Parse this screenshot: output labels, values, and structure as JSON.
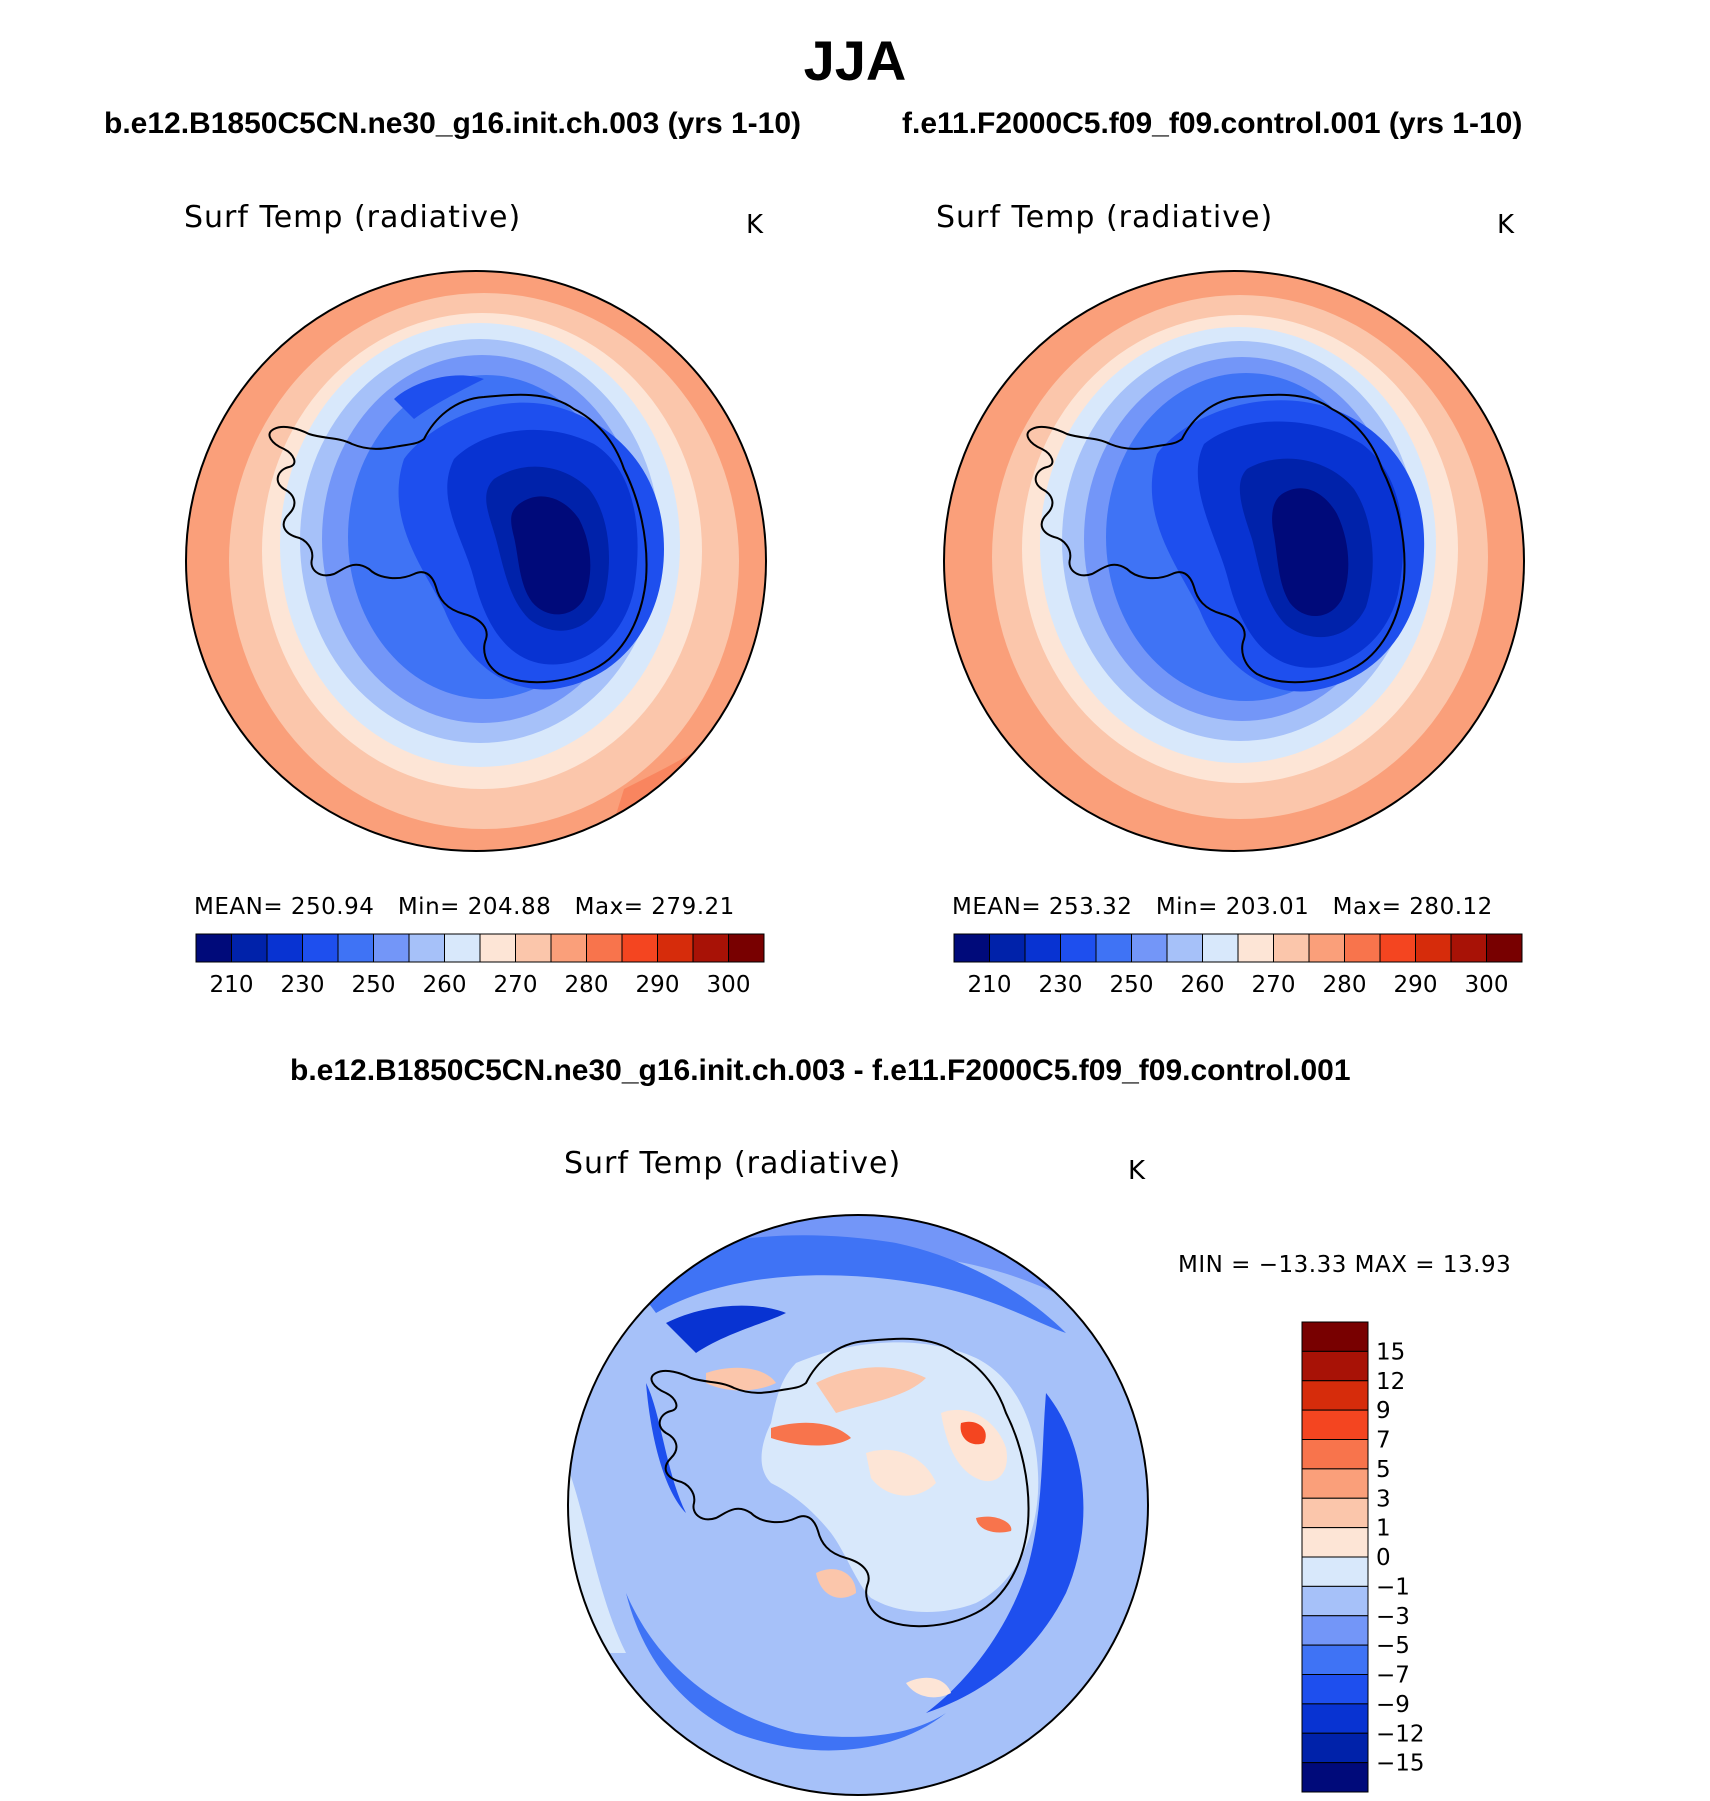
{
  "title": "JJA",
  "panels": {
    "left": {
      "case": "b.e12.B1850C5CN.ne30_g16.init.ch.003 (yrs 1-10)",
      "variable": "Surf Temp (radiative)",
      "units": "K",
      "mean_label": "MEAN=",
      "mean": "250.94",
      "min_label": "Min=",
      "min": "204.88",
      "max_label": "Max=",
      "max": "279.21"
    },
    "right": {
      "case": "f.e11.F2000C5.f09_f09.control.001 (yrs 1-10)",
      "variable": "Surf Temp (radiative)",
      "units": "K",
      "mean_label": "MEAN=",
      "mean": "253.32",
      "min_label": "Min=",
      "min": "203.01",
      "max_label": "Max=",
      "max": "280.12"
    },
    "diff": {
      "case": "b.e12.B1850C5CN.ne30_g16.init.ch.003 - f.e11.F2000C5.f09_f09.control.001",
      "variable": "Surf Temp (radiative)",
      "units": "K",
      "minmax": "MIN = −13.33 MAX =   13.93"
    }
  },
  "chart_data": [
    {
      "type": "heatmap",
      "projection": "south polar stereographic",
      "title": "Surf Temp (radiative)",
      "units": "K",
      "mean": 250.94,
      "min": 204.88,
      "max": 279.21,
      "colorbar_levels": [
        210,
        220,
        230,
        240,
        250,
        255,
        260,
        265,
        270,
        275,
        280,
        285,
        290,
        295,
        300
      ],
      "colorbar_tick_labels": [
        "210",
        "230",
        "250",
        "260",
        "270",
        "280",
        "290",
        "300"
      ],
      "colorbar_colors": [
        "#000a7a",
        "#0022aa",
        "#0833d2",
        "#1e4fee",
        "#3f73f5",
        "#7396f8",
        "#a6c1f9",
        "#d8e8fb",
        "#fde5d6",
        "#fbc6ab",
        "#fa9f7a",
        "#f8744c",
        "#f44520",
        "#d62c0b",
        "#a81206",
        "#780000"
      ]
    },
    {
      "type": "heatmap",
      "projection": "south polar stereographic",
      "title": "Surf Temp (radiative)",
      "units": "K",
      "mean": 253.32,
      "min": 203.01,
      "max": 280.12,
      "colorbar_levels": [
        210,
        220,
        230,
        240,
        250,
        255,
        260,
        265,
        270,
        275,
        280,
        285,
        290,
        295,
        300
      ],
      "colorbar_tick_labels": [
        "210",
        "230",
        "250",
        "260",
        "270",
        "280",
        "290",
        "300"
      ],
      "colorbar_colors": [
        "#000a7a",
        "#0022aa",
        "#0833d2",
        "#1e4fee",
        "#3f73f5",
        "#7396f8",
        "#a6c1f9",
        "#d8e8fb",
        "#fde5d6",
        "#fbc6ab",
        "#fa9f7a",
        "#f8744c",
        "#f44520",
        "#d62c0b",
        "#a81206",
        "#780000"
      ]
    },
    {
      "type": "heatmap",
      "projection": "south polar stereographic",
      "title": "Surf Temp (radiative)",
      "units": "K",
      "min": -13.33,
      "max": 13.93,
      "colorbar_levels": [
        -15,
        -12,
        -9,
        -7,
        -5,
        -3,
        -1,
        0,
        1,
        3,
        5,
        7,
        9,
        12,
        15
      ],
      "colorbar_tick_labels": [
        "−15",
        "−12",
        "−9",
        "−7",
        "−5",
        "−3",
        "−1",
        "0",
        "1",
        "3",
        "5",
        "7",
        "9",
        "12",
        "15"
      ],
      "colorbar_colors": [
        "#000a7a",
        "#0022aa",
        "#0833d2",
        "#1e4fee",
        "#3f73f5",
        "#7396f8",
        "#a6c1f9",
        "#d8e8fb",
        "#fde5d6",
        "#fbc6ab",
        "#fa9f7a",
        "#f8744c",
        "#f44520",
        "#d62c0b",
        "#a81206",
        "#780000"
      ]
    }
  ]
}
